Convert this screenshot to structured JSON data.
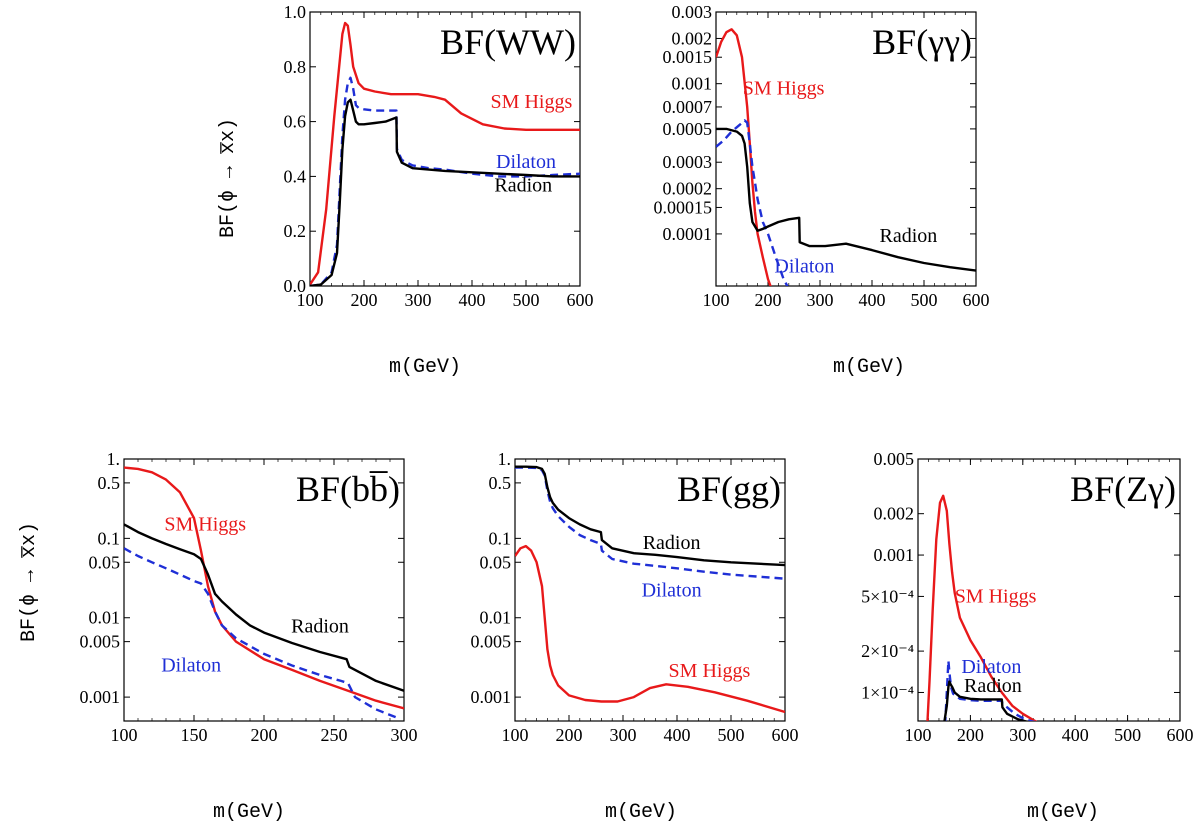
{
  "figure": {
    "ylabel_top": "BF(ϕ → x̅x)",
    "ylabel_bottom": "BF(ϕ → x̅x)"
  },
  "colors": {
    "sm_higgs": "#e8191a",
    "dilaton": "#1f2fd6",
    "radion": "#000000"
  },
  "chart_data": [
    {
      "id": "ww",
      "type": "line",
      "title": "BF(WW)",
      "xlabel": "m(GeV)",
      "ylabel": "BF(ϕ → x̅x)",
      "xlim": [
        100,
        600
      ],
      "ylim": [
        0,
        1
      ],
      "yscale": "linear",
      "xticks": [
        100,
        200,
        300,
        400,
        500,
        600
      ],
      "yticks": [
        {
          "v": 0,
          "t": "0.0"
        },
        {
          "v": 0.2,
          "t": "0.2"
        },
        {
          "v": 0.4,
          "t": "0.4"
        },
        {
          "v": 0.6,
          "t": "0.6"
        },
        {
          "v": 0.8,
          "t": "0.8"
        },
        {
          "v": 1,
          "t": "1.0"
        }
      ],
      "series": [
        {
          "name": "SM Higgs",
          "color": "#e8191a",
          "dash": "",
          "x": [
            100,
            115,
            130,
            145,
            155,
            160,
            165,
            170,
            175,
            180,
            190,
            200,
            220,
            250,
            300,
            330,
            350,
            380,
            420,
            460,
            500,
            550,
            600
          ],
          "y": [
            0.005,
            0.05,
            0.28,
            0.62,
            0.82,
            0.92,
            0.96,
            0.95,
            0.88,
            0.8,
            0.74,
            0.72,
            0.71,
            0.7,
            0.7,
            0.69,
            0.68,
            0.63,
            0.59,
            0.575,
            0.57,
            0.57,
            0.57
          ]
        },
        {
          "name": "Dilaton",
          "color": "#1f2fd6",
          "dash": "8,5",
          "x": [
            100,
            120,
            140,
            150,
            155,
            160,
            165,
            170,
            175,
            180,
            185,
            190,
            200,
            220,
            240,
            260,
            261,
            270,
            290,
            320,
            350,
            400,
            450,
            500,
            550,
            600
          ],
          "y": [
            0.0,
            0.005,
            0.05,
            0.15,
            0.35,
            0.55,
            0.68,
            0.74,
            0.76,
            0.72,
            0.66,
            0.65,
            0.645,
            0.64,
            0.64,
            0.64,
            0.5,
            0.46,
            0.44,
            0.43,
            0.425,
            0.41,
            0.4,
            0.4,
            0.405,
            0.41
          ]
        },
        {
          "name": "Radion",
          "color": "#000000",
          "dash": "",
          "x": [
            100,
            120,
            140,
            150,
            155,
            160,
            165,
            170,
            175,
            180,
            185,
            190,
            200,
            220,
            240,
            260,
            261,
            270,
            290,
            320,
            350,
            400,
            450,
            500,
            550,
            600
          ],
          "y": [
            0.0,
            0.005,
            0.04,
            0.12,
            0.3,
            0.5,
            0.62,
            0.67,
            0.68,
            0.64,
            0.6,
            0.59,
            0.59,
            0.595,
            0.6,
            0.615,
            0.49,
            0.45,
            0.43,
            0.425,
            0.42,
            0.415,
            0.41,
            0.405,
            0.4,
            0.4
          ]
        }
      ],
      "labels": [
        {
          "text": "SM Higgs",
          "color": "#e8191a",
          "x": 510,
          "y": 0.65
        },
        {
          "text": "Dilaton",
          "color": "#1f2fd6",
          "x": 500,
          "y": 0.43
        },
        {
          "text": "Radion",
          "color": "#000000",
          "x": 495,
          "y": 0.345
        }
      ]
    },
    {
      "id": "gamgam",
      "type": "line",
      "title": "BF(γγ)",
      "xlabel": "m(GeV)",
      "xlim": [
        100,
        600
      ],
      "ylim": [
        4.5e-05,
        0.003
      ],
      "yscale": "log",
      "xticks": [
        100,
        200,
        300,
        400,
        500,
        600
      ],
      "yticks": [
        {
          "v": 0.003,
          "t": "0.003"
        },
        {
          "v": 0.002,
          "t": "0.002"
        },
        {
          "v": 0.0015,
          "t": "0.0015"
        },
        {
          "v": 0.001,
          "t": "0.001"
        },
        {
          "v": 0.0007,
          "t": "0.0007"
        },
        {
          "v": 0.0005,
          "t": "0.0005"
        },
        {
          "v": 0.0003,
          "t": "0.0003"
        },
        {
          "v": 0.0002,
          "t": "0.0002"
        },
        {
          "v": 0.00015,
          "t": "0.00015"
        },
        {
          "v": 0.0001,
          "t": "0.0001"
        }
      ],
      "series": [
        {
          "name": "SM Higgs",
          "color": "#e8191a",
          "dash": "",
          "x": [
            100,
            110,
            120,
            130,
            140,
            150,
            160,
            165,
            170,
            175,
            180,
            190,
            200,
            210
          ],
          "y": [
            0.0015,
            0.0019,
            0.0022,
            0.0023,
            0.0021,
            0.0015,
            0.0007,
            0.0004,
            0.00022,
            0.00014,
            0.0001,
            7e-05,
            5e-05,
            4e-05
          ]
        },
        {
          "name": "Dilaton",
          "color": "#1f2fd6",
          "dash": "8,5",
          "x": [
            100,
            115,
            130,
            145,
            155,
            160,
            165,
            170,
            175,
            180,
            190,
            200,
            215,
            230,
            245
          ],
          "y": [
            0.00038,
            0.00042,
            0.00048,
            0.00053,
            0.00057,
            0.00055,
            0.0004,
            0.00028,
            0.00022,
            0.00017,
            0.00012,
            0.0001,
            7e-05,
            5e-05,
            4e-05
          ]
        },
        {
          "name": "Radion",
          "color": "#000000",
          "dash": "",
          "x": [
            100,
            120,
            140,
            150,
            155,
            160,
            165,
            170,
            180,
            190,
            200,
            220,
            240,
            260,
            261,
            280,
            310,
            350,
            400,
            450,
            500,
            550,
            600
          ],
          "y": [
            0.0005,
            0.0005,
            0.00048,
            0.00045,
            0.0004,
            0.00028,
            0.00016,
            0.00012,
            0.000105,
            0.000108,
            0.000112,
            0.00012,
            0.000125,
            0.000128,
            8.8e-05,
            8.3e-05,
            8.3e-05,
            8.6e-05,
            7.8e-05,
            7e-05,
            6.4e-05,
            6e-05,
            5.7e-05
          ]
        }
      ],
      "labels": [
        {
          "text": "SM Higgs",
          "color": "#e8191a",
          "x": 230,
          "y": 0.00085
        },
        {
          "text": "Radion",
          "color": "#000000",
          "x": 470,
          "y": 8.8e-05
        },
        {
          "text": "Dilaton",
          "color": "#1f2fd6",
          "x": 270,
          "y": 5.55e-05
        }
      ]
    },
    {
      "id": "bb",
      "type": "line",
      "title": "BF(bb̅)",
      "xlabel": "m(GeV)",
      "ylabel": "BF(ϕ → x̅x)",
      "xlim": [
        100,
        300
      ],
      "ylim": [
        0.0005,
        1.0
      ],
      "yscale": "log",
      "xticks": [
        100,
        150,
        200,
        250,
        300
      ],
      "yticks": [
        {
          "v": 1,
          "t": "1."
        },
        {
          "v": 0.5,
          "t": "0.5"
        },
        {
          "v": 0.1,
          "t": "0.1"
        },
        {
          "v": 0.05,
          "t": "0.05"
        },
        {
          "v": 0.01,
          "t": "0.01"
        },
        {
          "v": 0.005,
          "t": "0.005"
        },
        {
          "v": 0.001,
          "t": "0.001"
        }
      ],
      "series": [
        {
          "name": "SM Higgs",
          "color": "#e8191a",
          "dash": "",
          "x": [
            100,
            110,
            120,
            130,
            140,
            150,
            155,
            160,
            165,
            170,
            180,
            200,
            220,
            240,
            260,
            280,
            300
          ],
          "y": [
            0.78,
            0.75,
            0.68,
            0.55,
            0.38,
            0.18,
            0.07,
            0.025,
            0.012,
            0.008,
            0.005,
            0.003,
            0.0022,
            0.0016,
            0.0012,
            0.0009,
            0.00072
          ]
        },
        {
          "name": "Dilaton",
          "color": "#1f2fd6",
          "dash": "8,5",
          "x": [
            100,
            110,
            120,
            130,
            140,
            150,
            155,
            160,
            165,
            170,
            180,
            200,
            220,
            240,
            255,
            260,
            265,
            280,
            295
          ],
          "y": [
            0.075,
            0.06,
            0.05,
            0.042,
            0.035,
            0.029,
            0.027,
            0.02,
            0.012,
            0.008,
            0.0055,
            0.0035,
            0.0025,
            0.0019,
            0.0016,
            0.0015,
            0.001,
            0.0007,
            0.00055
          ]
        },
        {
          "name": "Radion",
          "color": "#000000",
          "dash": "",
          "x": [
            100,
            110,
            120,
            130,
            140,
            150,
            155,
            160,
            165,
            170,
            180,
            190,
            200,
            220,
            240,
            259,
            261,
            280,
            300
          ],
          "y": [
            0.15,
            0.12,
            0.1,
            0.085,
            0.073,
            0.063,
            0.055,
            0.035,
            0.02,
            0.016,
            0.011,
            0.008,
            0.0065,
            0.0048,
            0.0037,
            0.003,
            0.0024,
            0.0016,
            0.0012
          ]
        }
      ],
      "labels": [
        {
          "text": "SM Higgs",
          "color": "#e8191a",
          "x": 158,
          "y": 0.125
        },
        {
          "text": "Radion",
          "color": "#000000",
          "x": 240,
          "y": 0.0065
        },
        {
          "text": "Dilaton",
          "color": "#1f2fd6",
          "x": 148,
          "y": 0.0021
        }
      ]
    },
    {
      "id": "gg",
      "type": "line",
      "title": "BF(gg)",
      "xlabel": "m(GeV)",
      "xlim": [
        100,
        600
      ],
      "ylim": [
        0.0005,
        1.0
      ],
      "yscale": "log",
      "xticks": [
        100,
        200,
        300,
        400,
        500,
        600
      ],
      "yticks": [
        {
          "v": 1,
          "t": "1."
        },
        {
          "v": 0.5,
          "t": "0.5"
        },
        {
          "v": 0.1,
          "t": "0.1"
        },
        {
          "v": 0.05,
          "t": "0.05"
        },
        {
          "v": 0.01,
          "t": "0.01"
        },
        {
          "v": 0.005,
          "t": "0.005"
        },
        {
          "v": 0.001,
          "t": "0.001"
        }
      ],
      "series": [
        {
          "name": "SM Higgs",
          "color": "#e8191a",
          "dash": "",
          "x": [
            100,
            110,
            120,
            130,
            140,
            150,
            155,
            160,
            165,
            170,
            180,
            200,
            230,
            260,
            290,
            320,
            350,
            380,
            420,
            470,
            530,
            600
          ],
          "y": [
            0.06,
            0.075,
            0.08,
            0.07,
            0.05,
            0.025,
            0.01,
            0.004,
            0.0025,
            0.0019,
            0.0014,
            0.00105,
            0.00092,
            0.00088,
            0.00088,
            0.001,
            0.0013,
            0.00145,
            0.00135,
            0.00115,
            0.0009,
            0.00065
          ]
        },
        {
          "name": "Dilaton",
          "color": "#1f2fd6",
          "dash": "8,5",
          "x": [
            100,
            120,
            140,
            150,
            155,
            160,
            165,
            170,
            180,
            200,
            220,
            240,
            259,
            261,
            280,
            320,
            360,
            400,
            450,
            500,
            550,
            600
          ],
          "y": [
            0.78,
            0.78,
            0.77,
            0.72,
            0.62,
            0.4,
            0.29,
            0.24,
            0.19,
            0.14,
            0.11,
            0.095,
            0.085,
            0.07,
            0.055,
            0.048,
            0.045,
            0.042,
            0.038,
            0.035,
            0.033,
            0.031
          ]
        },
        {
          "name": "Radion",
          "color": "#000000",
          "dash": "",
          "x": [
            100,
            120,
            140,
            150,
            155,
            160,
            165,
            170,
            180,
            200,
            220,
            240,
            259,
            261,
            280,
            320,
            360,
            400,
            450,
            500,
            550,
            600
          ],
          "y": [
            0.8,
            0.8,
            0.79,
            0.75,
            0.65,
            0.44,
            0.33,
            0.28,
            0.23,
            0.18,
            0.15,
            0.13,
            0.12,
            0.095,
            0.075,
            0.065,
            0.062,
            0.058,
            0.053,
            0.05,
            0.048,
            0.046
          ]
        }
      ],
      "labels": [
        {
          "text": "Radion",
          "color": "#000000",
          "x": 390,
          "y": 0.073
        },
        {
          "text": "Dilaton",
          "color": "#1f2fd6",
          "x": 390,
          "y": 0.0185
        },
        {
          "text": "SM Higgs",
          "color": "#e8191a",
          "x": 460,
          "y": 0.0018
        }
      ]
    },
    {
      "id": "zgam",
      "type": "line",
      "title": "BF(Zγ)",
      "xlabel": "m(GeV)",
      "xlim": [
        100,
        600
      ],
      "ylim": [
        6.2e-05,
        0.005
      ],
      "yscale": "log",
      "xticks": [
        100,
        200,
        300,
        400,
        500,
        600
      ],
      "yticks": [
        {
          "v": 0.005,
          "t": "0.005"
        },
        {
          "v": 0.002,
          "t": "0.002"
        },
        {
          "v": 0.001,
          "t": "0.001"
        },
        {
          "v": 0.0005,
          "t": "5×10⁻⁴"
        },
        {
          "v": 0.0002,
          "t": "2×10⁻⁴"
        },
        {
          "v": 0.0001,
          "t": "1×10⁻⁴"
        }
      ],
      "series": [
        {
          "name": "SM Higgs",
          "color": "#e8191a",
          "dash": "",
          "x": [
            118,
            122,
            128,
            135,
            142,
            148,
            155,
            160,
            165,
            170,
            180,
            200,
            220,
            240,
            260,
            280,
            300,
            320,
            330
          ],
          "y": [
            6e-05,
            0.00012,
            0.0004,
            0.0013,
            0.0024,
            0.0027,
            0.0021,
            0.0012,
            0.00075,
            0.00053,
            0.00035,
            0.00024,
            0.00018,
            0.00013,
            0.0001,
            8e-05,
            7e-05,
            6.3e-05,
            6e-05
          ]
        },
        {
          "name": "Dilaton",
          "color": "#1f2fd6",
          "dash": "8,5",
          "x": [
            148,
            152,
            155,
            158,
            160,
            163,
            167,
            172,
            180,
            200,
            220,
            240,
            260,
            261,
            270,
            285,
            300,
            315,
            330
          ],
          "y": [
            6e-05,
            6e-05,
            0.0001,
            0.00017,
            0.00014,
            0.00011,
            9.8e-05,
            9.5e-05,
            9e-05,
            8.8e-05,
            8.7e-05,
            8.7e-05,
            8.7e-05,
            8.3e-05,
            7.8e-05,
            7e-05,
            6.5e-05,
            6.2e-05,
            6e-05
          ]
        },
        {
          "name": "Radion",
          "color": "#000000",
          "dash": "",
          "x": [
            150,
            155,
            158,
            160,
            162,
            165,
            170,
            180,
            200,
            220,
            240,
            260,
            261,
            270,
            290,
            310,
            330
          ],
          "y": [
            6e-05,
            8e-05,
            0.00011,
            0.00012,
            0.000115,
            0.00011,
            0.0001,
            9.3e-05,
            9e-05,
            8.9e-05,
            8.9e-05,
            8.9e-05,
            7.8e-05,
            7e-05,
            6.4e-05,
            6.1e-05,
            6e-05
          ]
        }
      ],
      "labels": [
        {
          "text": "SM Higgs",
          "color": "#e8191a",
          "x": 248,
          "y": 0.00045
        },
        {
          "text": "Dilaton",
          "color": "#1f2fd6",
          "x": 240,
          "y": 0.000138
        },
        {
          "text": "Radion",
          "color": "#000000",
          "x": 243,
          "y": 0.000101
        }
      ]
    }
  ]
}
